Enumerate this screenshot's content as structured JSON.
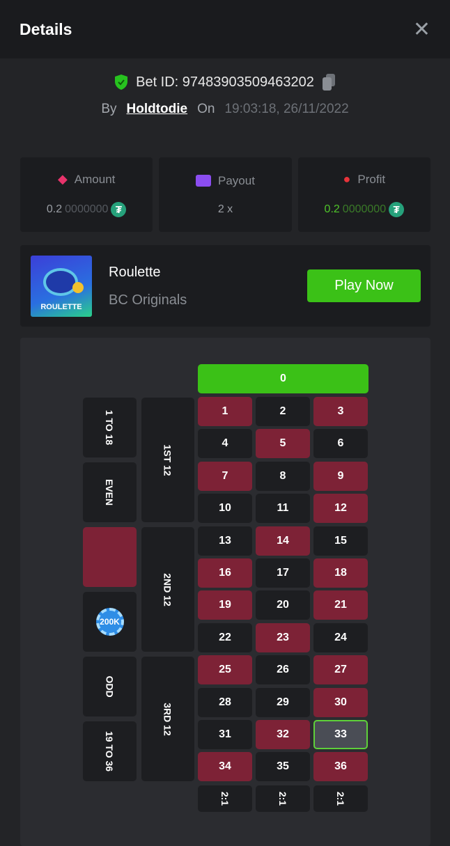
{
  "header": {
    "title": "Details",
    "close_icon": "close-icon"
  },
  "bet": {
    "id_label": "Bet ID: 97483903509463202",
    "by_label": "By",
    "user": "Holdtodie",
    "on_label": "On",
    "datetime": "19:03:18, 26/11/2022"
  },
  "stats": [
    {
      "label": "Amount",
      "icon": "coins-icon",
      "icon_color": "#e8336b",
      "value_main": "0.2",
      "value_dim": "0000000",
      "currency": "USDT"
    },
    {
      "label": "Payout",
      "icon": "wallet-icon",
      "icon_color": "#8b4df0",
      "value_main": "2 x",
      "value_dim": ""
    },
    {
      "label": "Profit",
      "icon": "hand-user-icon",
      "icon_color": "#e8333a",
      "value_main": "0.2",
      "value_dim": "0000000",
      "currency": "USDT",
      "value_color": "#4fc42a"
    }
  ],
  "game": {
    "thumb_text": "ROULETTE",
    "name": "Roulette",
    "provider": "BC Originals",
    "play_label": "Play Now"
  },
  "board": {
    "zero": "0",
    "red_numbers": [
      1,
      3,
      5,
      7,
      9,
      12,
      14,
      16,
      18,
      19,
      21,
      23,
      25,
      27,
      30,
      32,
      34,
      36
    ],
    "highlighted": 33,
    "dozens": [
      "1ST 12",
      "2ND 12",
      "3RD 12"
    ],
    "outside": [
      "1 TO 18",
      "EVEN",
      "",
      "",
      "ODD",
      "19 TO 36"
    ],
    "red_bet_label": "",
    "chip_label": "200K",
    "column_label": "2:1",
    "colors": {
      "red": "#7d2236",
      "black": "#1d1e21",
      "green": "#3bc117"
    }
  }
}
